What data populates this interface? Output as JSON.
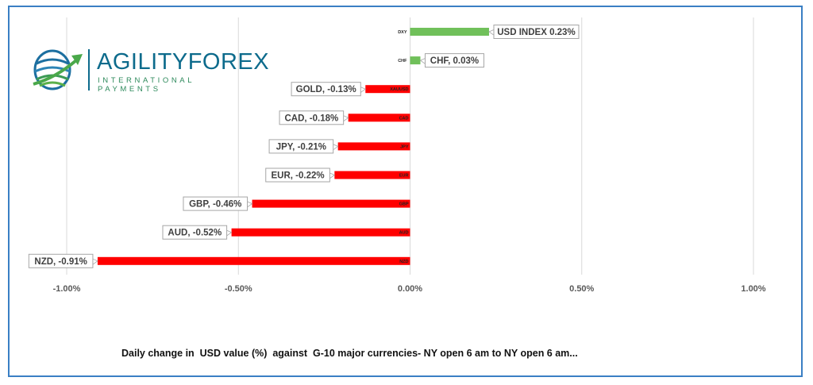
{
  "logo": {
    "brand": "AGILITYFOREX",
    "tagline": "INTERNATIONAL PAYMENTS"
  },
  "caption": "Daily change in  USD value (%)  against  G-10 major currencies- NY open 6 am to NY open 6 am...",
  "chart_data": {
    "type": "bar",
    "orientation": "horizontal",
    "categories": [
      "DXY",
      "CHF",
      "XAUUSD",
      "CAD",
      "JPY",
      "EUR",
      "GBP",
      "AUD",
      "NZD"
    ],
    "values": [
      0.23,
      0.03,
      -0.13,
      -0.18,
      -0.21,
      -0.22,
      -0.46,
      -0.52,
      -0.91
    ],
    "data_labels": [
      "USD INDEX 0.23%",
      "CHF, 0.03%",
      "GOLD, -0.13%",
      "CAD, -0.18%",
      "JPY, -0.21%",
      "EUR, -0.22%",
      "GBP, -0.46%",
      "AUD, -0.52%",
      "NZD, -0.91%"
    ],
    "xlim": [
      -1.0,
      1.0
    ],
    "xticks": [
      -1.0,
      -0.5,
      0.0,
      0.5,
      1.0
    ],
    "xtick_labels": [
      "-1.00%",
      "-0.50%",
      "0.00%",
      "0.50%",
      "1.00%"
    ],
    "grid": "vertical",
    "colors": {
      "positive": "#70c05a",
      "negative": "#ff0000",
      "grid": "#d9d9d9"
    }
  }
}
